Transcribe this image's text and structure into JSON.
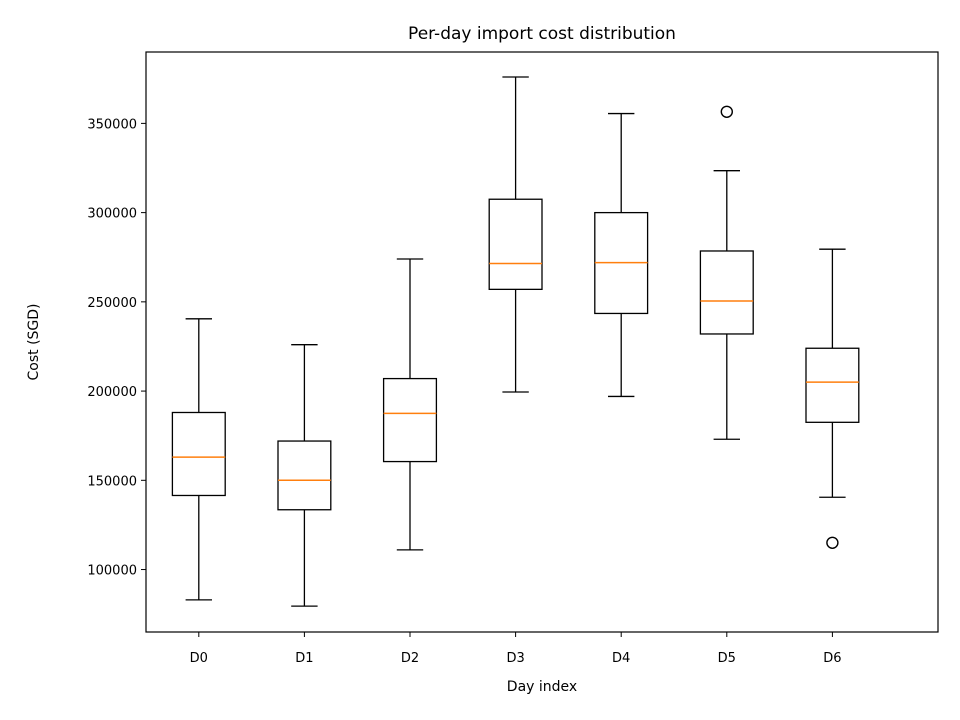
{
  "chart_data": {
    "type": "box",
    "title": "Per-day import cost distribution",
    "xlabel": "Day index",
    "ylabel": "Cost (SGD)",
    "categories": [
      "D0",
      "D1",
      "D2",
      "D3",
      "D4",
      "D5",
      "D6"
    ],
    "ylim": [
      65000,
      390000
    ],
    "yticks": [
      100000,
      150000,
      200000,
      250000,
      300000,
      350000
    ],
    "grid": false,
    "colors": {
      "box": "#000000",
      "median": "#ff7f0e",
      "outlier": "#000000"
    },
    "boxes": [
      {
        "category": "D0",
        "whisker_low": 83000,
        "q1": 141500,
        "median": 163000,
        "q3": 188000,
        "whisker_high": 240500,
        "outliers": []
      },
      {
        "category": "D1",
        "whisker_low": 79500,
        "q1": 133500,
        "median": 150000,
        "q3": 172000,
        "whisker_high": 226000,
        "outliers": []
      },
      {
        "category": "D2",
        "whisker_low": 111000,
        "q1": 160500,
        "median": 187500,
        "q3": 207000,
        "whisker_high": 274000,
        "outliers": []
      },
      {
        "category": "D3",
        "whisker_low": 199500,
        "q1": 257000,
        "median": 271500,
        "q3": 307500,
        "whisker_high": 376000,
        "outliers": []
      },
      {
        "category": "D4",
        "whisker_low": 197000,
        "q1": 243500,
        "median": 272000,
        "q3": 300000,
        "whisker_high": 355500,
        "outliers": []
      },
      {
        "category": "D5",
        "whisker_low": 173000,
        "q1": 232000,
        "median": 250500,
        "q3": 278500,
        "whisker_high": 323500,
        "outliers": [
          356500
        ]
      },
      {
        "category": "D6",
        "whisker_low": 140500,
        "q1": 182500,
        "median": 205000,
        "q3": 224000,
        "whisker_high": 279500,
        "outliers": [
          115000
        ]
      }
    ]
  }
}
